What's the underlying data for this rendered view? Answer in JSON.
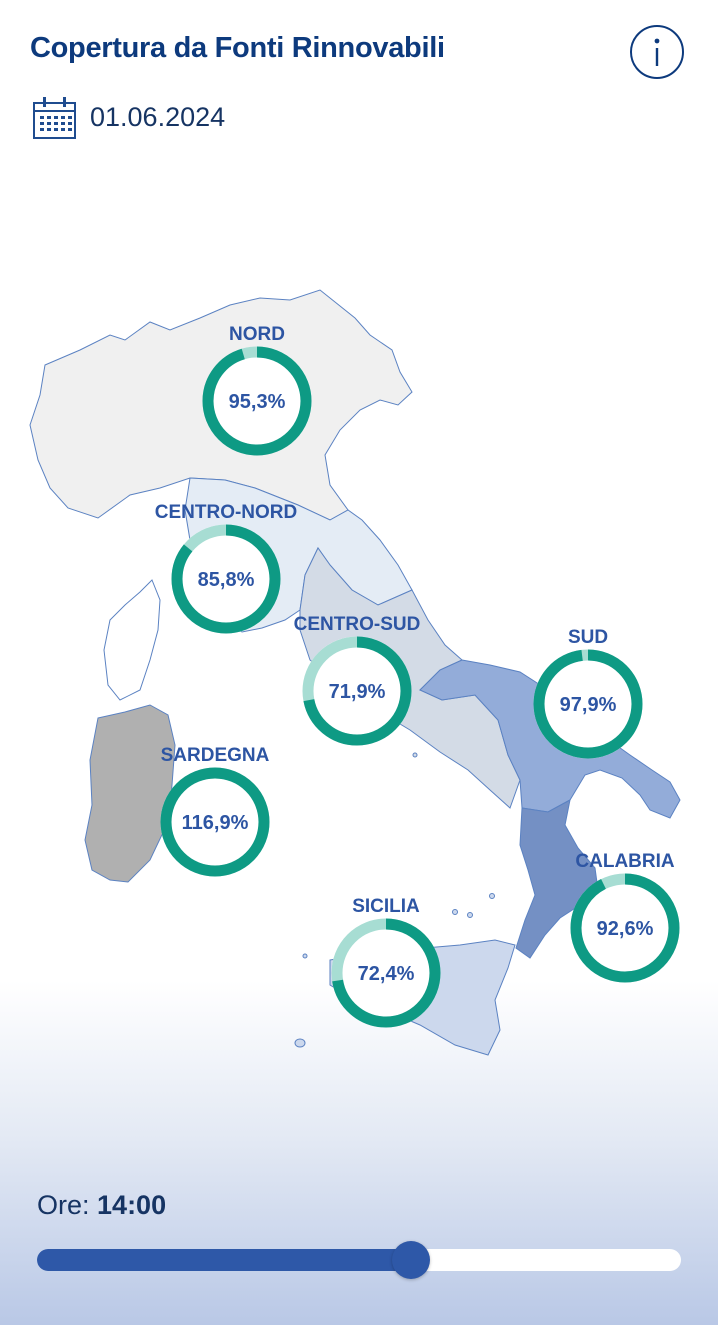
{
  "header": {
    "title": "Copertura da Fonti Rinnovabili",
    "date": "01.06.2024",
    "info_icon": "info-icon",
    "calendar_icon": "calendar-icon"
  },
  "regions": [
    {
      "id": "nord",
      "label": "NORD",
      "value_text": "95,3%",
      "value": 95.3
    },
    {
      "id": "centro-nord",
      "label": "CENTRO-NORD",
      "value_text": "85,8%",
      "value": 85.8
    },
    {
      "id": "centro-sud",
      "label": "CENTRO-SUD",
      "value_text": "71,9%",
      "value": 71.9
    },
    {
      "id": "sud",
      "label": "SUD",
      "value_text": "97,9%",
      "value": 97.9
    },
    {
      "id": "sardegna",
      "label": "SARDEGNA",
      "value_text": "116,9%",
      "value": 116.9
    },
    {
      "id": "calabria",
      "label": "CALABRIA",
      "value_text": "92,6%",
      "value": 92.6
    },
    {
      "id": "sicilia",
      "label": "SICILIA",
      "value_text": "72,4%",
      "value": 72.4
    }
  ],
  "colors": {
    "ring_filled": "#0e9a84",
    "ring_empty": "#a7ddd3",
    "label": "#2d55a3",
    "title": "#0d3a7d",
    "slider": "#2e58a8"
  },
  "time": {
    "label": "Ore:",
    "value": "14:00",
    "slider_fraction": 0.58
  }
}
